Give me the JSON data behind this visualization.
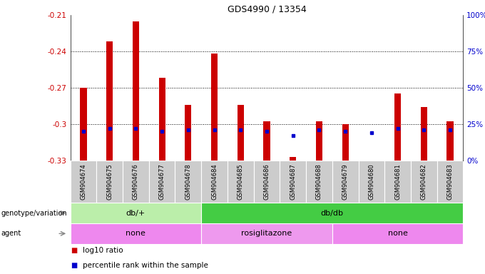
{
  "title": "GDS4990 / 13354",
  "samples": [
    "GSM904674",
    "GSM904675",
    "GSM904676",
    "GSM904677",
    "GSM904678",
    "GSM904684",
    "GSM904685",
    "GSM904686",
    "GSM904687",
    "GSM904688",
    "GSM904679",
    "GSM904680",
    "GSM904681",
    "GSM904682",
    "GSM904683"
  ],
  "log10_ratio": [
    -0.27,
    -0.232,
    -0.215,
    -0.262,
    -0.284,
    -0.242,
    -0.284,
    -0.298,
    -0.327,
    -0.298,
    -0.3,
    -0.33,
    -0.275,
    -0.286,
    -0.298
  ],
  "percentile": [
    20,
    22,
    22,
    20,
    21,
    21,
    21,
    20,
    17,
    21,
    20,
    19,
    22,
    21,
    21
  ],
  "ylim_left": [
    -0.33,
    -0.21
  ],
  "ylim_right": [
    0,
    100
  ],
  "yticks_left": [
    -0.33,
    -0.3,
    -0.27,
    -0.24,
    -0.21
  ],
  "yticks_right": [
    0,
    25,
    50,
    75,
    100
  ],
  "hlines": [
    -0.24,
    -0.27,
    -0.3
  ],
  "bar_color": "#cc0000",
  "dot_color": "#0000cc",
  "left_label_color": "#cc0000",
  "right_label_color": "#0000cc",
  "groups": [
    {
      "label": "db/+",
      "start": 0,
      "end": 5,
      "color": "#bbeeaa"
    },
    {
      "label": "db/db",
      "start": 5,
      "end": 15,
      "color": "#44cc44"
    }
  ],
  "agents": [
    {
      "label": "none",
      "start": 0,
      "end": 5,
      "color": "#ee88ee"
    },
    {
      "label": "rosiglitazone",
      "start": 5,
      "end": 10,
      "color": "#ee99ee"
    },
    {
      "label": "none",
      "start": 10,
      "end": 15,
      "color": "#ee88ee"
    }
  ],
  "legend_items": [
    {
      "color": "#cc0000",
      "label": "log10 ratio"
    },
    {
      "color": "#0000cc",
      "label": "percentile rank within the sample"
    }
  ],
  "bar_width": 0.25,
  "base_value": -0.33,
  "sample_box_color": "#cccccc",
  "geno_label": "genotype/variation",
  "agent_label": "agent"
}
